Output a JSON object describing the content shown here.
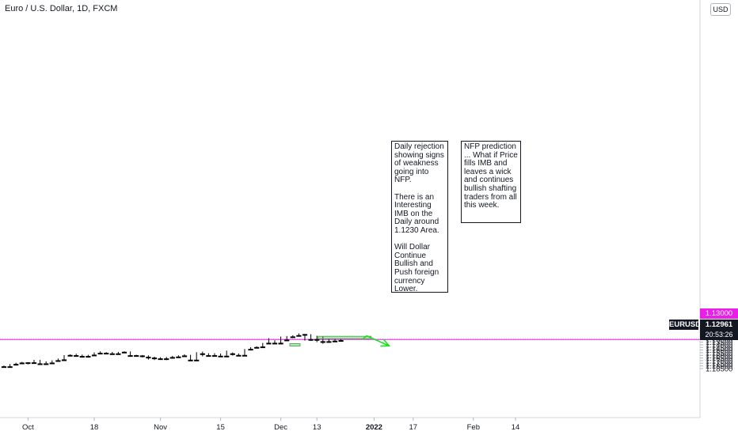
{
  "header": {
    "title": "Euro / U.S. Dollar, 1D, FXCM",
    "currency_button": "USD"
  },
  "notes": [
    {
      "text": "Daily rejection showing signs of weakness going into NFP.\n\nThere is an Interesting IMB on the Daily around 1.1230 Area.\n\nWill Dollar Continue Bullish and Push foreign currency Lower."
    },
    {
      "text": "NFP prediction ... What if Price fills IMB and leaves a wick and continues bullish shafting traders from all this week."
    }
  ],
  "price_tags": {
    "symbol": "EURUSD",
    "reference": "1.13000",
    "last": "1.12961",
    "countdown": "20:53:26"
  },
  "colors": {
    "up_candle": "#ffffff",
    "down_candle": "#000000",
    "reference_line": "#e91ee9",
    "last_price_line": "#e91ee9",
    "arrow": "#1de01d",
    "highlight": "#4caf50"
  },
  "chart_data": {
    "type": "candlestick",
    "symbol": "EURUSD",
    "timeframe": "1D",
    "source": "FXCM",
    "ylim": [
      1.1125,
      1.1905
    ],
    "y_ticks": [
      "1.11500",
      "1.12000",
      "1.12500",
      "1.13000",
      "1.13500",
      "1.14000",
      "1.14500",
      "1.15000",
      "1.15500",
      "1.16000",
      "1.16500",
      "1.17000",
      "1.17500",
      "1.18000",
      "1.18500"
    ],
    "x_ticks": [
      {
        "label": "Oct",
        "bar": 4,
        "bold": false
      },
      {
        "label": "18",
        "bar": 15,
        "bold": false
      },
      {
        "label": "Nov",
        "bar": 26,
        "bold": false
      },
      {
        "label": "15",
        "bar": 36,
        "bold": false
      },
      {
        "label": "Dec",
        "bar": 46,
        "bold": false
      },
      {
        "label": "13",
        "bar": 52,
        "bold": false
      },
      {
        "label": "2022",
        "bar": 61.5,
        "bold": true
      },
      {
        "label": "17",
        "bar": 68,
        "bold": false
      },
      {
        "label": "Feb",
        "bar": 78,
        "bold": false
      },
      {
        "label": "14",
        "bar": 85,
        "bold": false
      }
    ],
    "candles": [
      [
        1.181,
        1.1815,
        1.1795,
        1.183
      ],
      [
        1.1815,
        1.177,
        1.1765,
        1.1825
      ],
      [
        1.177,
        1.1745,
        1.174,
        1.1775
      ],
      [
        1.1745,
        1.1735,
        1.1725,
        1.176
      ],
      [
        1.1735,
        1.174,
        1.173,
        1.177
      ],
      [
        1.174,
        1.169,
        1.1685,
        1.1745
      ],
      [
        1.169,
        1.176,
        1.1685,
        1.1765
      ],
      [
        1.176,
        1.1745,
        1.1715,
        1.1765
      ],
      [
        1.1745,
        1.17,
        1.1695,
        1.1755
      ],
      [
        1.17,
        1.1685,
        1.166,
        1.1705
      ],
      [
        1.1685,
        1.16,
        1.1595,
        1.169
      ],
      [
        1.16,
        1.159,
        1.158,
        1.1615
      ],
      [
        1.159,
        1.1605,
        1.157,
        1.1615
      ],
      [
        1.1605,
        1.162,
        1.1585,
        1.1635
      ],
      [
        1.162,
        1.1595,
        1.159,
        1.164
      ],
      [
        1.1595,
        1.155,
        1.1545,
        1.16
      ],
      [
        1.155,
        1.156,
        1.1525,
        1.158
      ],
      [
        1.156,
        1.155,
        1.154,
        1.158
      ],
      [
        1.155,
        1.157,
        1.1535,
        1.1575
      ],
      [
        1.157,
        1.154,
        1.1535,
        1.158
      ],
      [
        1.154,
        1.153,
        1.1525,
        1.156
      ],
      [
        1.153,
        1.1605,
        1.1525,
        1.1625
      ],
      [
        1.1605,
        1.16,
        1.159,
        1.1615
      ],
      [
        1.16,
        1.161,
        1.1595,
        1.164
      ],
      [
        1.161,
        1.1635,
        1.16,
        1.168
      ],
      [
        1.1635,
        1.165,
        1.1625,
        1.169
      ],
      [
        1.165,
        1.1665,
        1.1635,
        1.168
      ],
      [
        1.1665,
        1.164,
        1.163,
        1.169
      ],
      [
        1.164,
        1.163,
        1.161,
        1.166
      ],
      [
        1.163,
        1.161,
        1.16,
        1.164
      ],
      [
        1.161,
        1.16,
        1.158,
        1.1625
      ],
      [
        1.16,
        1.169,
        1.159,
        1.17
      ],
      [
        1.169,
        1.1545,
        1.154,
        1.1695
      ],
      [
        1.1545,
        1.157,
        1.153,
        1.162
      ],
      [
        1.157,
        1.1605,
        1.156,
        1.1625
      ],
      [
        1.1605,
        1.158,
        1.156,
        1.1625
      ],
      [
        1.158,
        1.1615,
        1.1565,
        1.1625
      ],
      [
        1.1615,
        1.1545,
        1.151,
        1.1625
      ],
      [
        1.1545,
        1.157,
        1.1545,
        1.1605
      ],
      [
        1.157,
        1.16,
        1.1565,
        1.1615
      ],
      [
        1.16,
        1.1485,
        1.148,
        1.1605
      ],
      [
        1.1485,
        1.145,
        1.1445,
        1.149
      ],
      [
        1.145,
        1.144,
        1.143,
        1.146
      ],
      [
        1.144,
        1.137,
        1.1365,
        1.145
      ],
      [
        1.137,
        1.132,
        1.1275,
        1.138
      ],
      [
        1.132,
        1.137,
        1.1315,
        1.1385
      ],
      [
        1.137,
        1.131,
        1.1245,
        1.1375
      ],
      [
        1.131,
        1.125,
        1.1235,
        1.133
      ],
      [
        1.125,
        1.1225,
        1.122,
        1.1265
      ],
      [
        1.1225,
        1.1195,
        1.1185,
        1.124
      ],
      [
        1.1195,
        1.1205,
        1.1195,
        1.132
      ],
      [
        1.1205,
        1.13,
        1.12,
        1.1325
      ],
      [
        1.13,
        1.129,
        1.123,
        1.135
      ],
      [
        1.129,
        1.134,
        1.124,
        1.138
      ],
      [
        1.134,
        1.133,
        1.129,
        1.136
      ],
      [
        1.133,
        1.132,
        1.129,
        1.135
      ],
      [
        1.132,
        1.1296,
        1.1292,
        1.1335
      ]
    ],
    "reference_level": 1.13,
    "last_price": 1.12961,
    "imbalance_boxes": [
      {
        "bar_from": 47.5,
        "bar_to": 49.2,
        "price_top": 1.1379,
        "price_bottom": 1.132
      },
      {
        "bar_from": 52.2,
        "bar_to": 61.0,
        "price_top": 1.124,
        "price_bottom": 1.123
      }
    ],
    "projection_path": [
      [
        59.5,
        1.1296
      ],
      [
        60.3,
        1.1232
      ],
      [
        64.0,
        1.142
      ]
    ]
  }
}
